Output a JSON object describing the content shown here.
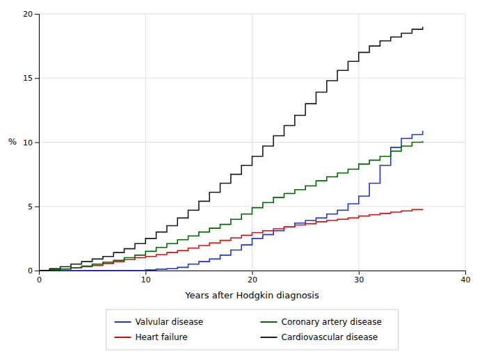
{
  "chart_data": {
    "type": "step",
    "x_label": "Years after Hodgkin diagnosis",
    "y_label": "%",
    "x": [
      0,
      1,
      2,
      3,
      4,
      5,
      6,
      7,
      8,
      9,
      10,
      11,
      12,
      13,
      14,
      15,
      16,
      17,
      18,
      19,
      20,
      21,
      22,
      23,
      24,
      25,
      26,
      27,
      28,
      29,
      30,
      31,
      32,
      33,
      34,
      35,
      36
    ],
    "series": [
      {
        "name": "Valvular disease",
        "color": "#1f35cc",
        "values": [
          0,
          0.0,
          0.0,
          0.0,
          0.0,
          0.0,
          0.0,
          0.0,
          0.0,
          0.0,
          0.05,
          0.1,
          0.15,
          0.25,
          0.5,
          0.7,
          0.9,
          1.2,
          1.6,
          2.0,
          2.5,
          2.8,
          3.1,
          3.4,
          3.7,
          3.9,
          4.1,
          4.4,
          4.7,
          5.2,
          5.8,
          6.8,
          8.2,
          9.6,
          10.3,
          10.6,
          10.9
        ]
      },
      {
        "name": "Heart failure",
        "color": "#cc1111",
        "values": [
          0,
          0.05,
          0.12,
          0.2,
          0.3,
          0.4,
          0.55,
          0.7,
          0.85,
          1.0,
          1.1,
          1.25,
          1.4,
          1.55,
          1.75,
          1.95,
          2.15,
          2.35,
          2.55,
          2.75,
          2.95,
          3.1,
          3.25,
          3.4,
          3.55,
          3.65,
          3.8,
          3.9,
          4.0,
          4.1,
          4.25,
          4.35,
          4.45,
          4.55,
          4.65,
          4.75,
          4.8
        ]
      },
      {
        "name": "Coronary artery disease",
        "color": "#006600",
        "values": [
          0,
          0.05,
          0.12,
          0.22,
          0.35,
          0.5,
          0.65,
          0.8,
          1.0,
          1.2,
          1.5,
          1.8,
          2.1,
          2.4,
          2.7,
          3.0,
          3.3,
          3.6,
          4.0,
          4.4,
          4.9,
          5.3,
          5.7,
          6.0,
          6.3,
          6.6,
          7.0,
          7.3,
          7.6,
          7.9,
          8.3,
          8.6,
          8.9,
          9.3,
          9.7,
          10.0,
          10.1
        ]
      },
      {
        "name": "Cardiovascular disease",
        "color": "#1a1a1a",
        "values": [
          0,
          0.15,
          0.3,
          0.5,
          0.7,
          0.9,
          1.1,
          1.4,
          1.7,
          2.1,
          2.5,
          3.0,
          3.5,
          4.1,
          4.7,
          5.4,
          6.1,
          6.8,
          7.5,
          8.2,
          8.9,
          9.7,
          10.5,
          11.3,
          12.1,
          13.0,
          13.9,
          14.8,
          15.6,
          16.3,
          17.0,
          17.5,
          17.9,
          18.2,
          18.5,
          18.8,
          19.0
        ]
      }
    ],
    "xlim": [
      0,
      40
    ],
    "ylim": [
      0,
      20
    ],
    "xticks": [
      0,
      10,
      20,
      30,
      40
    ],
    "yticks": [
      0,
      5,
      10,
      15,
      20
    ],
    "grid": true,
    "legend": "bottom"
  }
}
